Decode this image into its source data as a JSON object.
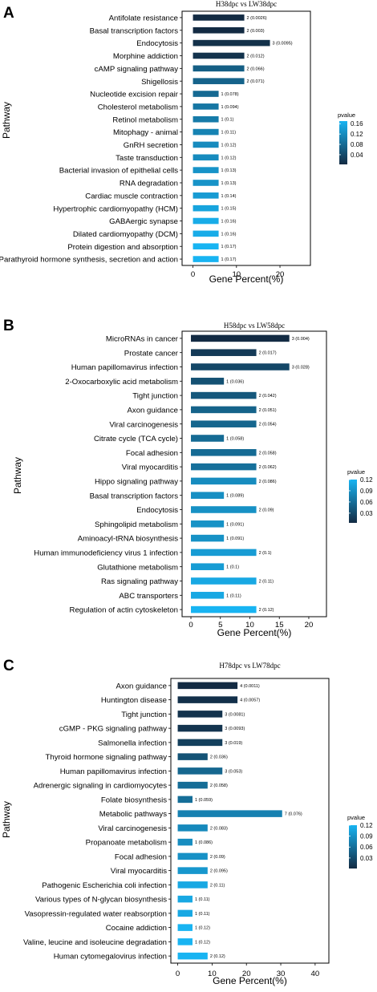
{
  "chart_data": [
    {
      "type": "bar",
      "panel_letter": "A",
      "title": "H38dpc  vs  LW38dpc",
      "xlabel": "Gene Percent(%)",
      "ylabel": "Pathway",
      "xlim": [
        -2.5,
        27
      ],
      "xticks": [
        0,
        10,
        20
      ],
      "legend_title": "pvalue",
      "legend_ticks": [
        0.16,
        0.12,
        0.08,
        0.04
      ],
      "pvalue_range": [
        0.0026,
        0.17
      ],
      "categories": [
        "Antifolate resistance",
        "Basal transcription factors",
        "Endocytosis",
        "Morphine addiction",
        "cAMP signaling pathway",
        "Shigellosis",
        "Nucleotide excision repair",
        "Cholesterol metabolism",
        "Retinol metabolism",
        "Mitophagy - animal",
        "GnRH secretion",
        "Taste transduction",
        "Bacterial invasion of epithelial cells",
        "RNA degradation",
        "Cardiac muscle contraction",
        "Hypertrophic cardiomyopathy (HCM)",
        "GABAergic synapse",
        "Dilated cardiomyopathy (DCM)",
        "Protein digestion and absorption",
        "Parathyroid hormone synthesis, secretion and action"
      ],
      "values": [
        11.8,
        11.8,
        17.7,
        11.8,
        11.8,
        11.8,
        5.9,
        5.9,
        5.9,
        5.9,
        5.9,
        5.9,
        5.9,
        5.9,
        5.9,
        5.9,
        5.9,
        5.9,
        5.9,
        5.9
      ],
      "pvalues": [
        0.0026,
        0.003,
        0.0095,
        0.012,
        0.066,
        0.071,
        0.078,
        0.094,
        0.1,
        0.11,
        0.12,
        0.12,
        0.13,
        0.13,
        0.14,
        0.15,
        0.16,
        0.16,
        0.17,
        0.17
      ],
      "labels": [
        "2 (0.0026)",
        "2 (0.003)",
        "3 (0.0095)",
        "2 (0.012)",
        "2 (0.066)",
        "2 (0.071)",
        "1 (0.078)",
        "1 (0.094)",
        "1 (0.1)",
        "1 (0.11)",
        "1 (0.12)",
        "1 (0.12)",
        "1 (0.13)",
        "1 (0.13)",
        "1 (0.14)",
        "1 (0.15)",
        "1 (0.16)",
        "1 (0.16)",
        "1 (0.17)",
        "1 (0.17)"
      ]
    },
    {
      "type": "bar",
      "panel_letter": "B",
      "title": "H58dpc  vs  LW58dpc",
      "xlabel": "Gene Percent(%)",
      "ylabel": "Pathway",
      "xlim": [
        -1.5,
        23
      ],
      "xticks": [
        0,
        5,
        10,
        15,
        20
      ],
      "legend_title": "pvalue",
      "legend_ticks": [
        0.12,
        0.09,
        0.06,
        0.03
      ],
      "pvalue_range": [
        0.004,
        0.12
      ],
      "categories": [
        "MicroRNAs in cancer",
        "Prostate cancer",
        "Human papillomavirus infection",
        "2-Oxocarboxylic acid metabolism",
        "Tight junction",
        "Axon guidance",
        "Viral carcinogenesis",
        "Citrate cycle (TCA cycle)",
        "Focal adhesion",
        "Viral myocarditis",
        "Hippo signaling pathway",
        "Basal transcription factors",
        "Endocytosis",
        "Sphingolipid metabolism",
        "Aminoacyl-tRNA biosynthesis",
        "Human immunodeficiency virus 1 infection",
        "Glutathione metabolism",
        "Ras signaling pathway",
        "ABC transporters",
        "Regulation of actin cytoskeleton"
      ],
      "values": [
        16.7,
        11.1,
        16.7,
        5.6,
        11.1,
        11.1,
        11.1,
        5.6,
        11.1,
        11.1,
        11.1,
        5.6,
        11.1,
        5.6,
        5.6,
        11.1,
        5.6,
        11.1,
        5.6,
        11.1
      ],
      "pvalues": [
        0.004,
        0.017,
        0.028,
        0.036,
        0.042,
        0.051,
        0.054,
        0.058,
        0.058,
        0.062,
        0.086,
        0.089,
        0.09,
        0.091,
        0.091,
        0.1,
        0.1,
        0.11,
        0.11,
        0.12
      ],
      "labels": [
        "3 (0.004)",
        "2 (0.017)",
        "3 (0.028)",
        "1 (0.036)",
        "2 (0.042)",
        "2 (0.051)",
        "2 (0.054)",
        "1 (0.058)",
        "2 (0.058)",
        "2 (0.062)",
        "2 (0.086)",
        "1 (0.089)",
        "2 (0.09)",
        "1 (0.091)",
        "1 (0.091)",
        "2 (0.1)",
        "1 (0.1)",
        "2 (0.11)",
        "1 (0.11)",
        "2 (0.12)"
      ]
    },
    {
      "type": "bar",
      "panel_letter": "C",
      "title": "H78dpc  vs  LW78dpc",
      "xlabel": "Gene Percent(%)",
      "ylabel": "Pathway",
      "xlim": [
        -2,
        44
      ],
      "xticks": [
        0,
        10,
        20,
        30,
        40
      ],
      "legend_title": "pvalue",
      "legend_ticks": [
        0.12,
        0.09,
        0.06,
        0.03
      ],
      "pvalue_range": [
        0.0011,
        0.12
      ],
      "categories": [
        "Axon guidance",
        "Huntington disease",
        "Tight junction",
        "cGMP - PKG signaling pathway",
        "Salmonella infection",
        "Thyroid hormone signaling pathway",
        "Human papillomavirus infection",
        "Adrenergic signaling in cardiomyocytes",
        "Folate biosynthesis",
        "Metabolic pathways",
        "Viral carcinogenesis",
        "Propanoate metabolism",
        "Focal adhesion",
        "Viral myocarditis",
        "Pathogenic Escherichia coli infection",
        "Various types of N-glycan biosynthesis",
        "Vasopressin-regulated water reabsorption",
        "Cocaine addiction",
        "Valine, leucine and isoleucine degradation",
        "Human cytomegalovirus infection"
      ],
      "values": [
        17.4,
        17.4,
        13.0,
        13.0,
        13.0,
        8.7,
        13.0,
        8.7,
        4.3,
        30.4,
        8.7,
        4.3,
        8.7,
        8.7,
        8.7,
        4.3,
        4.3,
        4.3,
        4.3,
        8.7
      ],
      "pvalues": [
        0.0011,
        0.0057,
        0.0081,
        0.0093,
        0.019,
        0.036,
        0.053,
        0.058,
        0.059,
        0.076,
        0.083,
        0.086,
        0.09,
        0.095,
        0.11,
        0.11,
        0.11,
        0.12,
        0.12,
        0.12
      ],
      "labels": [
        "4 (0.0011)",
        "4 (0.0057)",
        "3 (0.0081)",
        "3 (0.0093)",
        "3 (0.019)",
        "2 (0.036)",
        "3 (0.053)",
        "2 (0.058)",
        "1 (0.059)",
        "7 (0.076)",
        "2 (0.083)",
        "1 (0.086)",
        "2 (0.09)",
        "2 (0.095)",
        "2 (0.11)",
        "1 (0.11)",
        "1 (0.11)",
        "1 (0.12)",
        "1 (0.12)",
        "2 (0.12)"
      ]
    }
  ],
  "colors": {
    "low_pvalue": "#132B43",
    "high_pvalue": "#18B4F2",
    "axis": "#000000"
  }
}
